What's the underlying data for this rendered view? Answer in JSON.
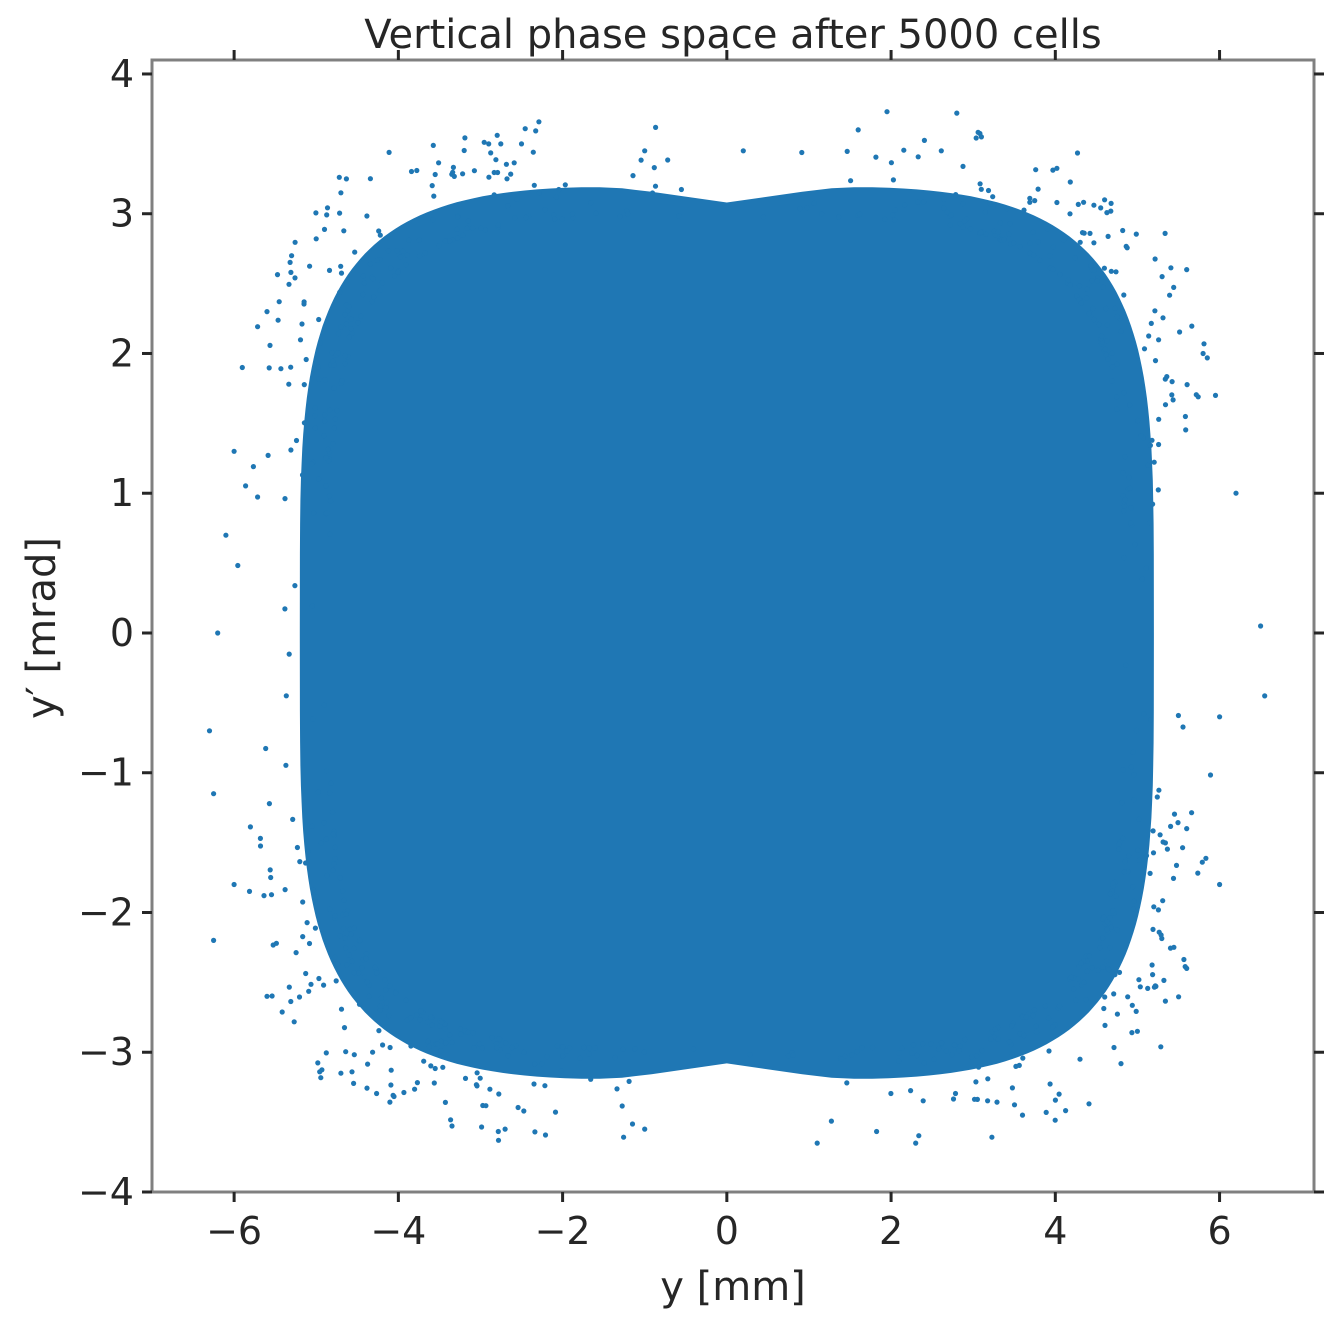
{
  "chart_data": {
    "type": "scatter",
    "title": "Vertical phase space after 5000 cells",
    "xlabel": "y [mm]",
    "ylabel": "y′ [mrad]",
    "xlim": [
      -7.0,
      7.15
    ],
    "ylim": [
      -4.0,
      4.1
    ],
    "xticks": [
      -6,
      -4,
      -2,
      0,
      2,
      4,
      6
    ],
    "yticks": [
      -4,
      -3,
      -2,
      -1,
      0,
      1,
      2,
      3,
      4
    ],
    "xtick_labels": [
      "−6",
      "−4",
      "−2",
      "0",
      "2",
      "4",
      "6"
    ],
    "ytick_labels": [
      "−4",
      "−3",
      "−2",
      "−1",
      "0",
      "1",
      "2",
      "3",
      "4"
    ],
    "grid": false,
    "legend": "none",
    "series_color": "#1f77b4",
    "core_region": {
      "x_range": [
        -5.2,
        5.2
      ],
      "y_range": [
        -3.2,
        3.2
      ],
      "description_shape": "dense rounded-square distribution with slight notches near y=0 at top and bottom"
    },
    "sample_outlier_points": [
      [
        1.95,
        3.73
      ],
      [
        2.8,
        3.72
      ],
      [
        1.6,
        3.6
      ],
      [
        3.1,
        3.55
      ],
      [
        -2.9,
        3.5
      ],
      [
        -2.5,
        3.5
      ],
      [
        -1.0,
        3.45
      ],
      [
        0.2,
        3.45
      ],
      [
        -4.7,
        3.15
      ],
      [
        -5.3,
        2.7
      ],
      [
        -5.6,
        2.3
      ],
      [
        -5.9,
        1.9
      ],
      [
        -6.0,
        1.3
      ],
      [
        -6.1,
        0.7
      ],
      [
        -6.2,
        0.0
      ],
      [
        -6.3,
        -0.7
      ],
      [
        -6.25,
        -1.15
      ],
      [
        -6.0,
        -1.8
      ],
      [
        -6.25,
        -2.2
      ],
      [
        -5.6,
        -2.6
      ],
      [
        -4.7,
        -3.15
      ],
      [
        -2.7,
        -3.55
      ],
      [
        -1.0,
        -3.55
      ],
      [
        1.1,
        -3.65
      ],
      [
        2.3,
        -3.65
      ],
      [
        3.6,
        -3.45
      ],
      [
        5.6,
        2.6
      ],
      [
        5.8,
        2.0
      ],
      [
        5.95,
        1.7
      ],
      [
        6.2,
        1.0
      ],
      [
        6.5,
        0.05
      ],
      [
        6.55,
        -0.45
      ],
      [
        6.0,
        -0.6
      ],
      [
        6.0,
        -1.8
      ],
      [
        5.6,
        -2.4
      ],
      [
        4.3,
        -3.05
      ],
      [
        5.0,
        -2.85
      ],
      [
        4.6,
        3.1
      ],
      [
        5.3,
        2.55
      ],
      [
        5.6,
        -1.4
      ]
    ]
  }
}
